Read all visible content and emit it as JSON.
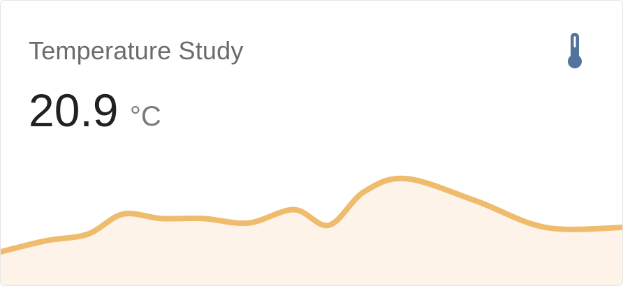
{
  "card": {
    "title": "Temperature Study",
    "icon": "thermometer-icon",
    "value": "20.9",
    "unit": "°C"
  },
  "colors": {
    "line": "#efbb6c",
    "fill": "#fdf3e8",
    "icon": "#53739a",
    "title": "#6b6b6b",
    "value": "#212121",
    "unit": "#7a7a7a"
  },
  "chart_data": {
    "type": "area",
    "title": "",
    "xlabel": "",
    "ylabel": "",
    "series": [
      {
        "values": [
          19.8,
          20.3,
          20.6,
          21.5,
          21.3,
          21.3,
          21.1,
          21.7,
          21.0,
          22.5,
          23.1,
          22.1,
          20.9,
          20.9
        ]
      }
    ]
  }
}
